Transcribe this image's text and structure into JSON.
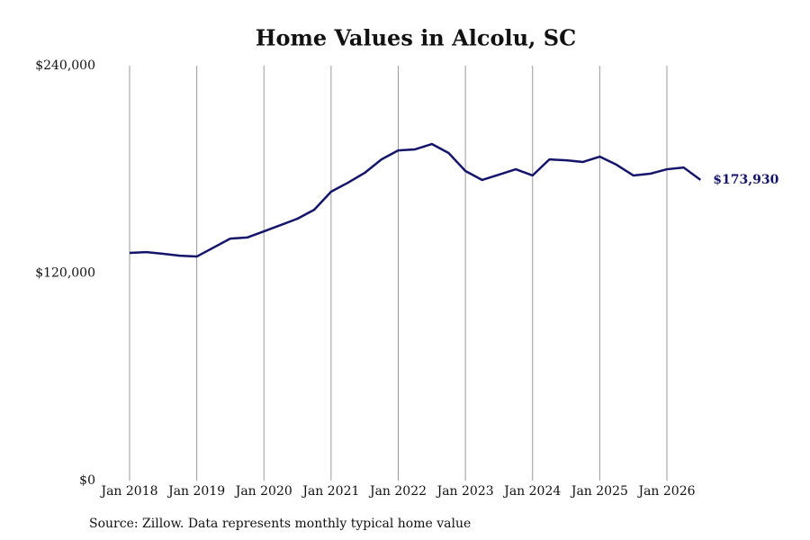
{
  "chart_data": {
    "type": "line",
    "title": "Home Values in Alcolu, SC",
    "source": "Source: Zillow. Data represents monthly typical home value",
    "x": [
      "2018-01",
      "2018-04",
      "2018-07",
      "2018-10",
      "2019-01",
      "2019-04",
      "2019-07",
      "2019-10",
      "2020-01",
      "2020-04",
      "2020-07",
      "2020-10",
      "2021-01",
      "2021-04",
      "2021-07",
      "2021-10",
      "2022-01",
      "2022-04",
      "2022-07",
      "2022-10",
      "2023-01",
      "2023-04",
      "2023-07",
      "2023-10",
      "2024-01",
      "2024-04",
      "2024-07",
      "2024-10",
      "2025-01",
      "2025-04",
      "2025-07",
      "2025-10",
      "2026-01",
      "2026-04",
      "2026-07"
    ],
    "series": [
      {
        "color": "#14146b",
        "values": [
          131700,
          132200,
          131200,
          130100,
          129600,
          134800,
          140000,
          140600,
          144200,
          147800,
          151500,
          156700,
          167100,
          172300,
          178000,
          185800,
          191000,
          191600,
          194700,
          189500,
          179100,
          173900,
          177000,
          180100,
          176500,
          185800,
          185300,
          184300,
          187400,
          182700,
          176500,
          177500,
          180100,
          181100,
          173930
        ],
        "value_labels": [
          null,
          null,
          null,
          null,
          null,
          null,
          null,
          null,
          null,
          null,
          null,
          null,
          null,
          null,
          null,
          null,
          null,
          null,
          null,
          null,
          null,
          null,
          null,
          null,
          null,
          null,
          null,
          null,
          null,
          null,
          null,
          null,
          null,
          null,
          "$173,930"
        ]
      }
    ],
    "xlim": [
      "2018-01",
      "2026-07"
    ],
    "xticks": [
      {
        "value": "2018-01",
        "label": "Jan 2018"
      },
      {
        "value": "2019-01",
        "label": "Jan 2019"
      },
      {
        "value": "2020-01",
        "label": "Jan 2020"
      },
      {
        "value": "2021-01",
        "label": "Jan 2021"
      },
      {
        "value": "2022-01",
        "label": "Jan 2022"
      },
      {
        "value": "2023-01",
        "label": "Jan 2023"
      },
      {
        "value": "2024-01",
        "label": "Jan 2024"
      },
      {
        "value": "2025-01",
        "label": "Jan 2025"
      },
      {
        "value": "2026-01",
        "label": "Jan 2026"
      }
    ],
    "ylim": [
      0,
      240000
    ],
    "yticks": [
      {
        "value": 0,
        "label": "$0"
      },
      {
        "value": 120000,
        "label": "$120,000"
      },
      {
        "value": 240000,
        "label": "$240,000"
      }
    ],
    "grid": true
  }
}
